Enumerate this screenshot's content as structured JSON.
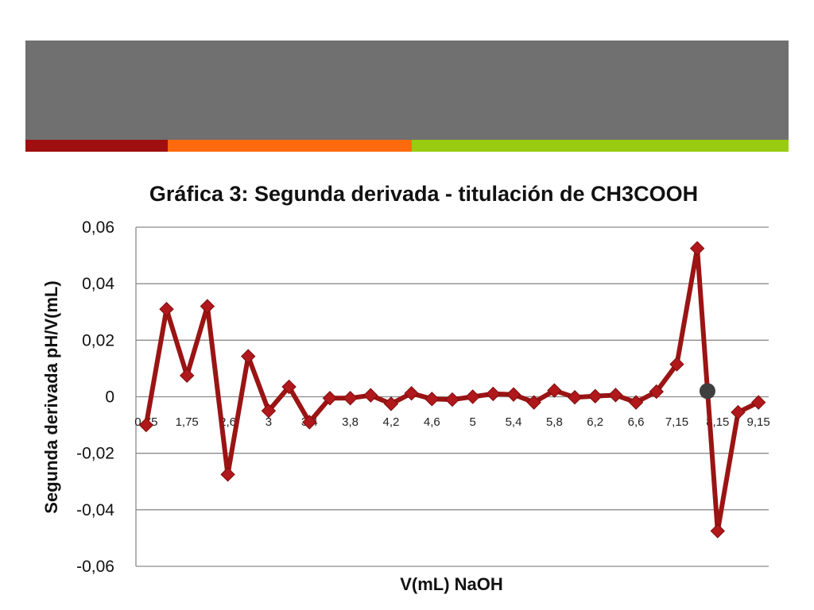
{
  "colors": {
    "banner": "#707070",
    "stripes": [
      "#a00f0f",
      "#ff6a0e",
      "#99cc10"
    ],
    "series_line": "#9b1414",
    "series_marker": "#b0181c",
    "highlight_point": "#3f3f3f",
    "grid": "#8c8c8c"
  },
  "chart_data": {
    "type": "line",
    "title": "Gráfica 3: Segunda derivada - titulación de CH3COOH",
    "xlabel": "V(mL) NaOH",
    "ylabel": "Segunda derivada pH/V(mL)",
    "ylim": [
      -0.06,
      0.06
    ],
    "yticks": [
      0.06,
      0.04,
      0.02,
      0,
      -0.02,
      -0.04,
      -0.06
    ],
    "ytick_labels": [
      "0,06",
      "0,04",
      "0,02",
      "0",
      "-0,02",
      "-0,04",
      "-0,06"
    ],
    "grid": true,
    "legend": "none",
    "categories": [
      "0,75",
      "",
      "1,75",
      "",
      "2,6",
      "",
      "3",
      "",
      "3,4",
      "",
      "3,8",
      "",
      "4,2",
      "",
      "4,6",
      "",
      "5",
      "",
      "5,4",
      "",
      "5,8",
      "",
      "6,2",
      "",
      "6,6",
      "",
      "7,15",
      "",
      "8,15",
      "",
      "9,15"
    ],
    "series": [
      {
        "values": [
          -0.01,
          0.031,
          0.0075,
          0.032,
          -0.0275,
          0.0143,
          -0.005,
          0.0035,
          -0.009,
          -0.0005,
          -0.0005,
          0.0005,
          -0.0025,
          0.0012,
          -0.0008,
          -0.001,
          0.0,
          0.001,
          0.0008,
          -0.002,
          0.0022,
          -0.0002,
          0.0002,
          0.0006,
          -0.002,
          0.0018,
          0.0115,
          0.0525,
          -0.0475,
          -0.0055,
          -0.002
        ]
      }
    ],
    "highlight": {
      "index": 27.5,
      "value": 0.002
    }
  }
}
